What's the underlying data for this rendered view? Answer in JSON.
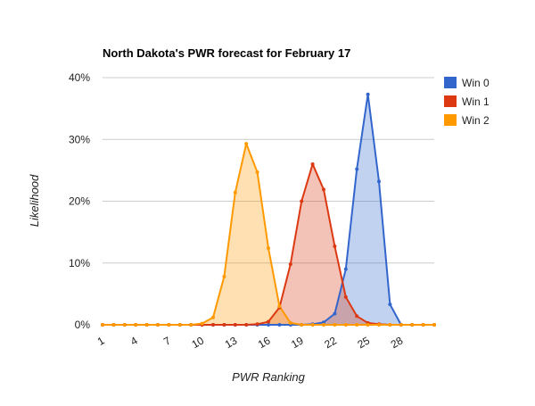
{
  "chart_data": {
    "type": "area",
    "title": "North Dakota's PWR forecast for February 17",
    "xlabel": "PWR Ranking",
    "ylabel": "Likelihood",
    "x": [
      1,
      2,
      3,
      4,
      5,
      6,
      7,
      8,
      9,
      10,
      11,
      12,
      13,
      14,
      15,
      16,
      17,
      18,
      19,
      20,
      21,
      22,
      23,
      24,
      25,
      26,
      27,
      28,
      29,
      30,
      31
    ],
    "xticks": [
      1,
      4,
      7,
      10,
      13,
      16,
      19,
      22,
      25,
      28
    ],
    "xlim": [
      1,
      31
    ],
    "ylim": [
      0,
      40
    ],
    "yticks": [
      0,
      10,
      20,
      30,
      40
    ],
    "ytick_labels": [
      "0%",
      "10%",
      "20%",
      "30%",
      "40%"
    ],
    "grid": "horizontal",
    "legend_position": "right",
    "series": [
      {
        "name": "Win 0",
        "color": "#3366cc",
        "values": [
          0,
          0,
          0,
          0,
          0,
          0,
          0,
          0,
          0,
          0,
          0,
          0,
          0,
          0,
          0,
          0,
          0,
          0,
          0,
          0.1,
          0.4,
          1.8,
          9,
          25.2,
          37.3,
          23.2,
          3.3,
          0,
          0,
          0,
          0
        ]
      },
      {
        "name": "Win 1",
        "color": "#dc3912",
        "values": [
          0,
          0,
          0,
          0,
          0,
          0,
          0,
          0,
          0,
          0,
          0,
          0,
          0,
          0,
          0.1,
          0.5,
          2.8,
          9.8,
          20,
          26,
          21.9,
          12.7,
          4.5,
          1.4,
          0.3,
          0.1,
          0,
          0,
          0,
          0,
          0
        ]
      },
      {
        "name": "Win 2",
        "color": "#ff9900",
        "values": [
          0,
          0,
          0,
          0,
          0,
          0,
          0,
          0,
          0,
          0.2,
          1.2,
          7.8,
          21.4,
          29.3,
          24.7,
          12.4,
          3,
          0.3,
          0,
          0,
          0,
          0,
          0,
          0,
          0,
          0,
          0,
          0,
          0,
          0,
          0
        ]
      }
    ]
  }
}
